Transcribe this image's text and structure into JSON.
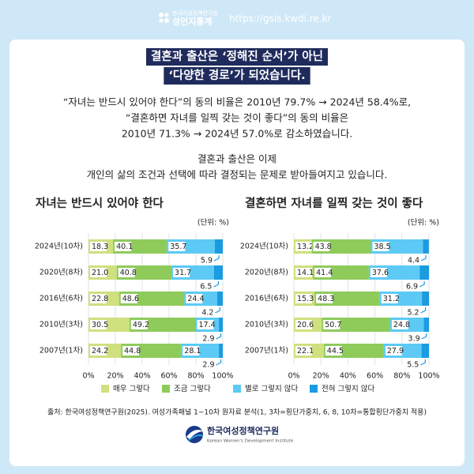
{
  "header": {
    "org": "한국여성정책연구원",
    "brand": "성인지통계",
    "url": "https://gsis.kwdi.re.kr"
  },
  "headline": [
    "결혼과 출산은 ‘정해진 순서’가 아닌",
    "‘다양한 경로’가 되었습니다."
  ],
  "summary": [
    "“자녀는 반드시 있어야 한다”의 동의 비율은 2010년 79.7% → 2024년 58.4%로,",
    "“결혼하면 자녀를 일찍 갖는 것이 좋다”의 동의 비율은",
    "2010년 71.3% → 2024년 57.0%로 감소하였습니다."
  ],
  "conclusion": [
    "결혼과 출산은 이제",
    "개인의 삶의 조건과 선택에 따라 결정되는 문제로 받아들여지고 있습니다."
  ],
  "chart_data": [
    {
      "type": "bar",
      "orientation": "horizontal",
      "stacked": true,
      "grid": true,
      "title": "자녀는 반드시 있어야 한다",
      "unit": "(단위: %)",
      "categories": [
        "2024년(10차)",
        "2020년(8차)",
        "2016년(6차)",
        "2010년(3차)",
        "2007년(1차)"
      ],
      "xlim": [
        0,
        100
      ],
      "xticks": [
        {
          "value": 0,
          "label": "0%"
        },
        {
          "value": 20,
          "label": "20%"
        },
        {
          "value": 40,
          "label": "40%"
        },
        {
          "value": 60,
          "label": "60%"
        },
        {
          "value": 80,
          "label": "80%"
        },
        {
          "value": 100,
          "label": "100%"
        }
      ],
      "series": [
        {
          "name": "매우 그렇다",
          "color": "#cfe07e",
          "values": [
            18.3,
            21.0,
            22.8,
            30.5,
            24.2
          ],
          "value_labels": [
            "18.3",
            "21.0",
            "22.8",
            "30.5",
            "24.2"
          ]
        },
        {
          "name": "조금 그렇다",
          "color": "#8ecb5b",
          "values": [
            40.1,
            40.8,
            48.6,
            49.2,
            44.8
          ],
          "value_labels": [
            "40.1",
            "40.8",
            "48.6",
            "49.2",
            "44.8"
          ]
        },
        {
          "name": "별로 그렇지 않다",
          "color": "#5ccaf5",
          "values": [
            35.7,
            31.7,
            24.4,
            17.4,
            28.1
          ],
          "value_labels": [
            "35.7",
            "31.7",
            "24.4",
            "17.4",
            "28.1"
          ]
        },
        {
          "name": "전혀 그렇지 않다",
          "color": "#1b9be0",
          "values": [
            5.9,
            6.5,
            4.2,
            2.9,
            2.9
          ],
          "value_labels": [
            "5.9",
            "6.5",
            "4.2",
            "2.9",
            "2.9"
          ]
        }
      ]
    },
    {
      "type": "bar",
      "orientation": "horizontal",
      "stacked": true,
      "grid": true,
      "title": "결혼하면 자녀를 일찍 갖는 것이 좋다",
      "unit": "(단위: %)",
      "categories": [
        "2024년(10차)",
        "2020년(8차)",
        "2016년(6차)",
        "2010년(3차)",
        "2007년(1차)"
      ],
      "xlim": [
        0,
        100
      ],
      "xticks": [
        {
          "value": 0,
          "label": "0%"
        },
        {
          "value": 20,
          "label": "20%"
        },
        {
          "value": 40,
          "label": "40%"
        },
        {
          "value": 60,
          "label": "60%"
        },
        {
          "value": 80,
          "label": "80%"
        },
        {
          "value": 100,
          "label": "100%"
        }
      ],
      "series": [
        {
          "color": "#cfe07e",
          "values": [
            13.2,
            14.1,
            15.3,
            20.6,
            22.1
          ],
          "value_labels": [
            "13.2",
            "14.1",
            "15.3",
            "20.6",
            "22.1"
          ]
        },
        {
          "color": "#8ecb5b",
          "values": [
            43.8,
            41.4,
            48.3,
            50.7,
            44.5
          ],
          "value_labels": [
            "43.8",
            "41.4",
            "48.3",
            "50.7",
            "44.5"
          ]
        },
        {
          "color": "#5ccaf5",
          "values": [
            38.5,
            37.6,
            31.2,
            24.8,
            27.9
          ],
          "value_labels": [
            "38.5",
            "37.6",
            "31.2",
            "24.8",
            "27.9"
          ]
        },
        {
          "color": "#1b9be0",
          "values": [
            4.4,
            6.9,
            5.2,
            3.9,
            5.5
          ],
          "value_labels": [
            "4.4",
            "6.9",
            "5.2",
            "3.9",
            "5.5"
          ]
        }
      ]
    }
  ],
  "source": "출처: 한국여성정책연구원(2025). 여성가족패널 1~10차 원자료 분석(1, 3차=횡단가중치, 6, 8, 10차=통합횡단가중치 적용)",
  "footer": {
    "org": "한국여성정책연구원",
    "org_en": "Korean Women's Development Institute"
  }
}
